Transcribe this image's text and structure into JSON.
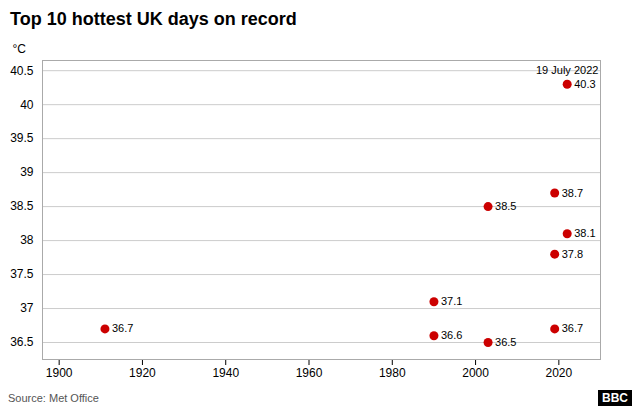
{
  "chart_data": {
    "type": "scatter",
    "title": "Top 10 hottest UK days on record",
    "ylabel": "°C",
    "x": [
      1911,
      1990,
      1990,
      2003,
      2003,
      2019,
      2019,
      2019,
      2022,
      2022
    ],
    "values": [
      36.7,
      36.6,
      37.1,
      36.5,
      38.5,
      36.7,
      37.8,
      38.7,
      38.1,
      40.3
    ],
    "color": "#cc0000",
    "data_labels": true,
    "xlim": [
      1896,
      2030
    ],
    "xticks": [
      1900,
      1920,
      1940,
      1960,
      1980,
      2000,
      2020
    ],
    "ylim": [
      36.25,
      40.65
    ],
    "yticks": [
      36.5,
      37,
      37.5,
      38,
      38.5,
      39,
      39.5,
      40,
      40.5
    ],
    "grid": "y",
    "annotations": [
      {
        "text": "19 July 2022",
        "x": 2022,
        "y": 40.3
      }
    ],
    "source": "Source: Met Office",
    "logo": "BBC"
  }
}
